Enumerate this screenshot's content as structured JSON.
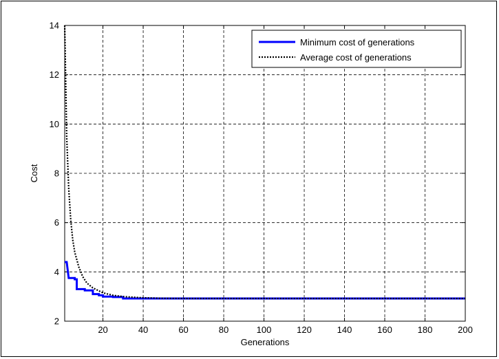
{
  "chart_data": {
    "type": "line",
    "title": "",
    "xlabel": "Generations",
    "ylabel": "Cost",
    "xlim": [
      1,
      200
    ],
    "ylim": [
      2,
      14
    ],
    "xticks": [
      20,
      40,
      60,
      80,
      100,
      120,
      140,
      160,
      180,
      200
    ],
    "yticks": [
      2,
      4,
      6,
      8,
      10,
      12,
      14
    ],
    "grid": true,
    "legend": {
      "position": "top-right"
    },
    "series": [
      {
        "name": "Minimum cost of generations",
        "color": "#0000ff",
        "style": "solid",
        "x": [
          1,
          2,
          3,
          3,
          6,
          6,
          7,
          7,
          11,
          11,
          15,
          15,
          18,
          18,
          20,
          20,
          25,
          25,
          30,
          30,
          200
        ],
        "y": [
          4.4,
          4.4,
          3.75,
          3.75,
          3.75,
          3.7,
          3.7,
          3.3,
          3.3,
          3.25,
          3.25,
          3.1,
          3.1,
          3.05,
          3.05,
          3.0,
          3.0,
          2.98,
          2.98,
          2.92,
          2.92
        ]
      },
      {
        "name": "Average cost of generations",
        "color": "#000000",
        "style": "dotted",
        "x": [
          1,
          2,
          3,
          4,
          5,
          6,
          8,
          10,
          12,
          15,
          20,
          25,
          30,
          40,
          50,
          60,
          200
        ],
        "y": [
          14.0,
          9.5,
          7.4,
          6.1,
          5.3,
          4.8,
          4.2,
          3.8,
          3.55,
          3.35,
          3.15,
          3.05,
          3.0,
          2.95,
          2.93,
          2.92,
          2.92
        ]
      }
    ]
  }
}
